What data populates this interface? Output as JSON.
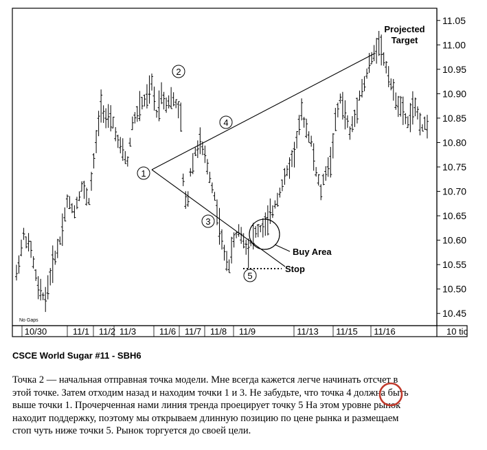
{
  "chart_data": {
    "type": "bar",
    "subtype": "ohlc",
    "y_axis": {
      "ticks": [
        "11.05",
        "11.00",
        "10.95",
        "10.90",
        "10.85",
        "10.80",
        "10.75",
        "10.70",
        "10.65",
        "10.60",
        "10.55",
        "10.50",
        "10.45"
      ],
      "range": [
        10.425,
        11.075
      ]
    },
    "x_axis": {
      "date_labels": [
        "10/30",
        "11/1",
        "11/2",
        "11/3",
        "11/6",
        "11/7",
        "11/8",
        "11/9",
        "11/13",
        "11/15",
        "11/16"
      ],
      "unit_label": "10 tic"
    },
    "footnote": "No Gaps",
    "points": [
      {
        "label": "1",
        "price": 10.74
      },
      {
        "label": "2",
        "price": 10.93
      },
      {
        "label": "3",
        "price": 10.64
      },
      {
        "label": "4",
        "price": 10.83
      },
      {
        "label": "5",
        "price": 10.52
      }
    ],
    "annotations": {
      "target": "Projected\nTarget",
      "buy": "Buy Area",
      "stop": "Stop"
    },
    "price_path": [
      [
        0,
        10.53
      ],
      [
        6,
        10.61
      ],
      [
        12,
        10.58
      ],
      [
        18,
        10.5
      ],
      [
        24,
        10.48
      ],
      [
        30,
        10.55
      ],
      [
        36,
        10.6
      ],
      [
        42,
        10.68
      ],
      [
        48,
        10.66
      ],
      [
        54,
        10.71
      ],
      [
        60,
        10.68
      ],
      [
        70,
        10.88
      ],
      [
        74,
        10.85
      ],
      [
        80,
        10.84
      ],
      [
        84,
        10.8
      ],
      [
        88,
        10.78
      ],
      [
        92,
        10.76
      ],
      [
        96,
        10.84
      ],
      [
        100,
        10.86
      ],
      [
        104,
        10.88
      ],
      [
        108,
        10.89
      ],
      [
        112,
        10.92
      ],
      [
        116,
        10.86
      ],
      [
        120,
        10.9
      ],
      [
        124,
        10.88
      ],
      [
        128,
        10.89
      ],
      [
        132,
        10.88
      ],
      [
        136,
        10.85
      ],
      [
        138,
        10.72
      ],
      [
        141,
        10.66
      ],
      [
        144,
        10.74
      ],
      [
        148,
        10.78
      ],
      [
        152,
        10.8
      ],
      [
        156,
        10.77
      ],
      [
        160,
        10.73
      ],
      [
        164,
        10.69
      ],
      [
        168,
        10.63
      ],
      [
        172,
        10.57
      ],
      [
        176,
        10.55
      ],
      [
        180,
        10.6
      ],
      [
        184,
        10.62
      ],
      [
        188,
        10.6
      ],
      [
        192,
        10.58
      ],
      [
        196,
        10.61
      ],
      [
        200,
        10.62
      ],
      [
        206,
        10.63
      ],
      [
        212,
        10.66
      ],
      [
        218,
        10.7
      ],
      [
        224,
        10.74
      ],
      [
        230,
        10.78
      ],
      [
        236,
        10.86
      ],
      [
        240,
        10.83
      ],
      [
        244,
        10.8
      ],
      [
        248,
        10.74
      ],
      [
        252,
        10.7
      ],
      [
        256,
        10.74
      ],
      [
        260,
        10.76
      ],
      [
        264,
        10.84
      ],
      [
        268,
        10.89
      ],
      [
        272,
        10.86
      ],
      [
        276,
        10.82
      ],
      [
        280,
        10.85
      ],
      [
        284,
        10.9
      ],
      [
        288,
        10.92
      ],
      [
        292,
        10.96
      ],
      [
        296,
        10.98
      ],
      [
        300,
        11.01
      ],
      [
        304,
        10.97
      ],
      [
        308,
        10.94
      ],
      [
        312,
        10.9
      ],
      [
        316,
        10.88
      ],
      [
        320,
        10.86
      ],
      [
        324,
        10.84
      ],
      [
        328,
        10.87
      ],
      [
        332,
        10.86
      ],
      [
        336,
        10.83
      ],
      [
        340,
        10.84
      ]
    ]
  },
  "caption": "CSCE World Sugar #11 - SBH6",
  "body_lines": [
    "Точка 2 — начальная отправная точка модели. Мне всегда кажется легче начинать отсчет в",
    "этой точке. Затем отходим назад и находим точки 1 и 3. Не забудьте, что точка 4 должна быть",
    "выше точки 1. Прочерченная нами линия тренда проецирует точку 5 На этом уровне рынок",
    "находит поддержку, поэтому мы открываем длинную позицию по цене рынка и размещаем",
    "стоп чуть ниже точки 5. Рынок торгуется до своей цели."
  ],
  "highlight_color": "#c0392b"
}
